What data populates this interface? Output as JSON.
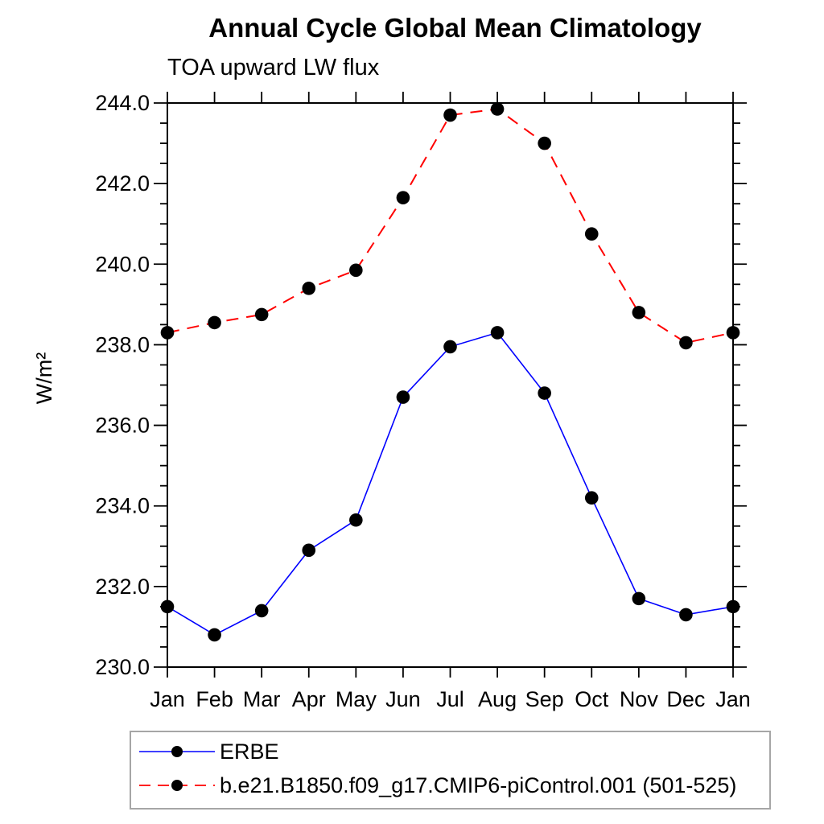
{
  "chart": {
    "title": "Annual Cycle Global Mean Climatology",
    "subtitle": "TOA upward LW flux",
    "ylabel": "W/m²"
  },
  "chart_data": {
    "type": "line",
    "title": "Annual Cycle Global Mean Climatology",
    "subtitle": "TOA upward LW flux",
    "xlabel": "",
    "ylabel": "W/m²",
    "categories": [
      "Jan",
      "Feb",
      "Mar",
      "Apr",
      "May",
      "Jun",
      "Jul",
      "Aug",
      "Sep",
      "Oct",
      "Nov",
      "Dec",
      "Jan"
    ],
    "series": [
      {
        "name": "ERBE",
        "color": "#0000ff",
        "line_style": "solid",
        "marker": "black-filled-circle",
        "values": [
          231.5,
          230.8,
          231.4,
          232.9,
          233.65,
          236.7,
          237.95,
          238.3,
          236.8,
          234.2,
          231.7,
          231.3,
          231.5
        ]
      },
      {
        "name": "b.e21.B1850.f09_g17.CMIP6-piControl.001 (501-525)",
        "color": "#ff0000",
        "line_style": "dashed",
        "marker": "black-filled-circle",
        "values": [
          238.3,
          238.55,
          238.75,
          239.4,
          239.85,
          241.65,
          243.7,
          243.85,
          243.0,
          240.75,
          238.8,
          238.05,
          238.3
        ]
      }
    ],
    "ylim": [
      230.0,
      244.0
    ],
    "ytick_major_step": 2.0,
    "ytick_minor_step": 0.5,
    "ytick_labels": [
      "230.0",
      "232.0",
      "234.0",
      "236.0",
      "238.0",
      "240.0",
      "242.0",
      "244.0"
    ],
    "grid": false,
    "legend_position": "bottom-left-box",
    "marker_color": "#000000",
    "axis_color": "#000000"
  },
  "legend": {
    "items": [
      {
        "label": "ERBE"
      },
      {
        "label": "b.e21.B1850.f09_g17.CMIP6-piControl.001 (501-525)"
      }
    ]
  }
}
